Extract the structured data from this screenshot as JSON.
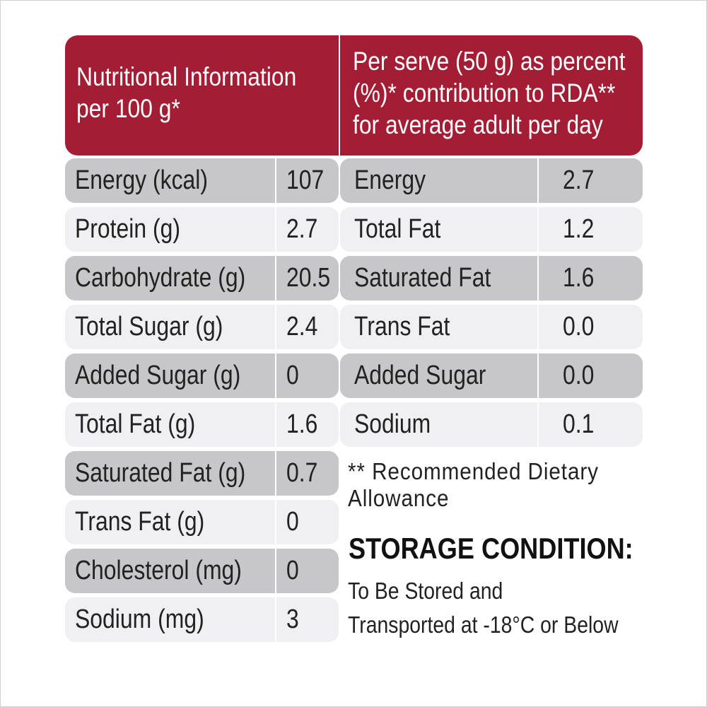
{
  "header": {
    "left_lines": [
      "Nutritional Information",
      "per 100 g*"
    ],
    "right_lines": [
      "Per serve (50 g) as percent",
      "(%)* contribution to RDA**",
      "for average adult per day"
    ]
  },
  "per_100g": [
    {
      "label": "Energy (kcal)",
      "value": "107"
    },
    {
      "label": "Protein (g)",
      "value": "2.7"
    },
    {
      "label": "Carbohydrate (g)",
      "value": "20.5"
    },
    {
      "label": "Total Sugar (g)",
      "value": "2.4"
    },
    {
      "label": "Added Sugar (g)",
      "value": "0"
    },
    {
      "label": "Total Fat (g)",
      "value": "1.6"
    },
    {
      "label": "Saturated Fat (g)",
      "value": "0.7"
    },
    {
      "label": "Trans Fat (g)",
      "value": "0"
    },
    {
      "label": "Cholesterol (mg)",
      "value": "0"
    },
    {
      "label": "Sodium (mg)",
      "value": "3"
    }
  ],
  "rda_per_serve": [
    {
      "label": "Energy",
      "value": "2.7"
    },
    {
      "label": "Total Fat",
      "value": "1.2"
    },
    {
      "label": "Saturated Fat",
      "value": "1.6"
    },
    {
      "label": "Trans Fat",
      "value": "0.0"
    },
    {
      "label": "Added Sugar",
      "value": "0.0"
    },
    {
      "label": "Sodium",
      "value": "0.1"
    }
  ],
  "rda_note_lines": [
    "** Recommended Dietary",
    "Allowance"
  ],
  "storage": {
    "title": "STORAGE CONDITION:",
    "lines": [
      "To Be Stored and",
      "Transported at -18°C or Below"
    ]
  },
  "colors": {
    "header_bg": "#a31d35",
    "row_dark": "#c7c7c9",
    "row_light": "#f0f0f2"
  }
}
